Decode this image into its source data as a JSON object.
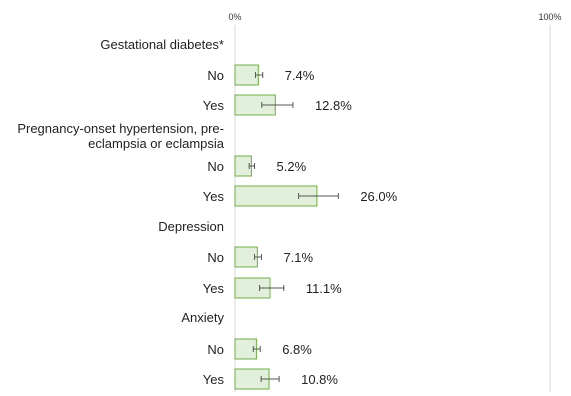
{
  "chart_data": {
    "type": "bar",
    "orientation": "horizontal",
    "xlim": [
      0,
      100
    ],
    "ticks": [
      {
        "value": 0,
        "label": "0%"
      },
      {
        "value": 100,
        "label": "100%"
      }
    ],
    "colors": {
      "bar_fill": "#e2efda",
      "bar_stroke": "#70ad47",
      "error_bar": "#555555",
      "axis": "#d9d9d9"
    },
    "groups": [
      {
        "label": "Gestational diabetes*",
        "rows": [
          {
            "category": "No",
            "value": 7.4,
            "ci": [
              6.5,
              8.8
            ],
            "label": "7.4%"
          },
          {
            "category": "Yes",
            "value": 12.8,
            "ci": [
              8.5,
              18.4
            ],
            "label": "12.8%"
          }
        ]
      },
      {
        "label": "Pregnancy-onset hypertension, pre-eclampsia or eclampsia",
        "label_lines": [
          "Pregnancy-onset hypertension, pre-",
          "eclampsia or eclampsia"
        ],
        "rows": [
          {
            "category": "No",
            "value": 5.2,
            "ci": [
              4.5,
              6.2
            ],
            "label": "5.2%"
          },
          {
            "category": "Yes",
            "value": 26.0,
            "ci": [
              20.2,
              32.8
            ],
            "label": "26.0%"
          }
        ]
      },
      {
        "label": "Depression",
        "rows": [
          {
            "category": "No",
            "value": 7.1,
            "ci": [
              6.2,
              8.4
            ],
            "label": "7.1%"
          },
          {
            "category": "Yes",
            "value": 11.1,
            "ci": [
              7.8,
              15.5
            ],
            "label": "11.1%"
          }
        ]
      },
      {
        "label": "Anxiety",
        "rows": [
          {
            "category": "No",
            "value": 6.8,
            "ci": [
              5.8,
              8.0
            ],
            "label": "6.8%"
          },
          {
            "category": "Yes",
            "value": 10.8,
            "ci": [
              8.3,
              14.0
            ],
            "label": "10.8%"
          }
        ]
      }
    ]
  }
}
